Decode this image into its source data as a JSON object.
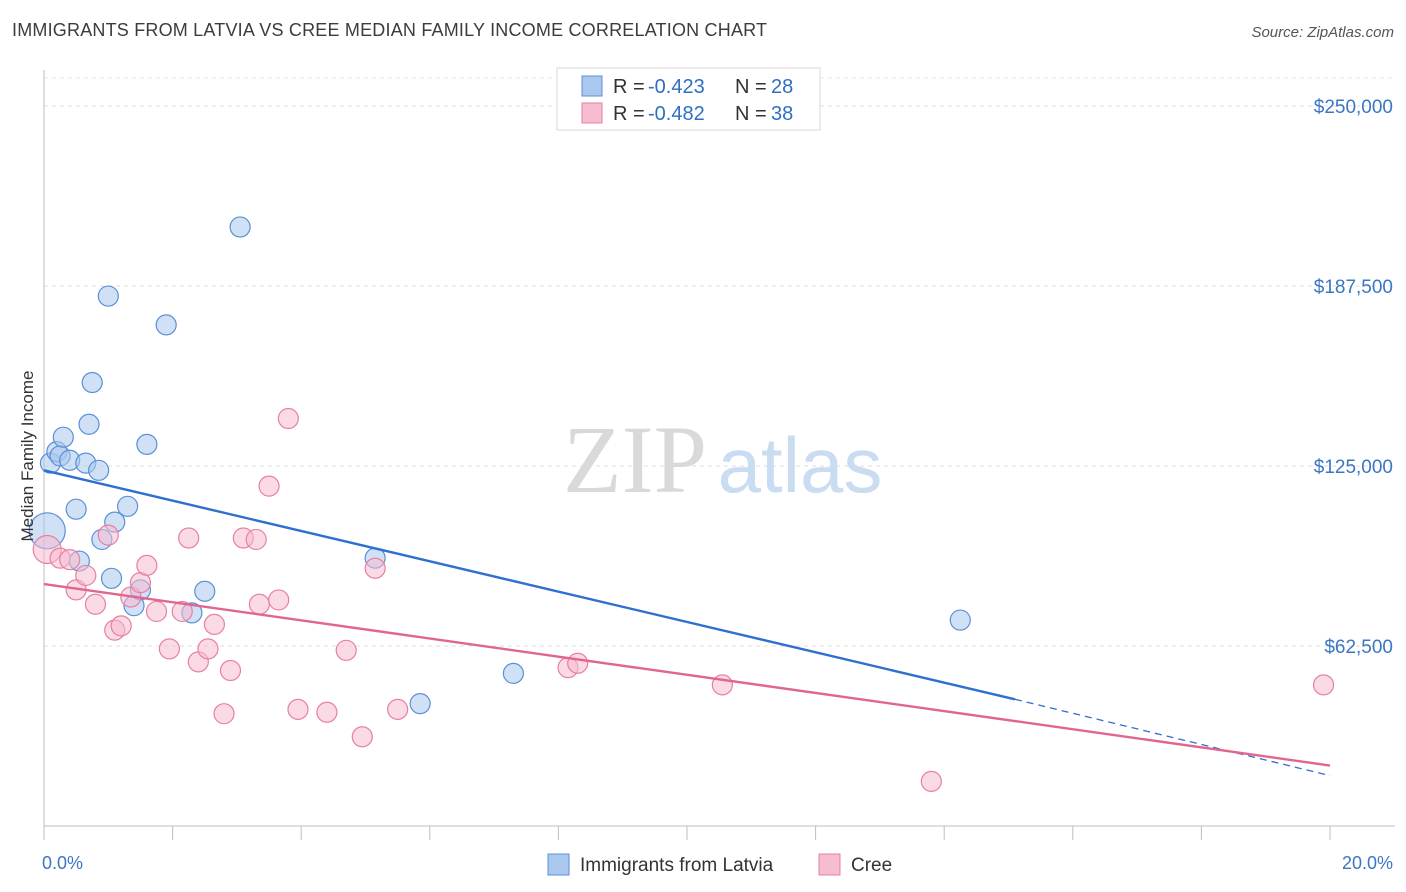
{
  "header": {
    "title": "IMMIGRANTS FROM LATVIA VS CREE MEDIAN FAMILY INCOME CORRELATION CHART",
    "source": "Source: ZipAtlas.com"
  },
  "watermark": {
    "zip": "ZIP",
    "atlas": "atlas"
  },
  "legend": {
    "r_label": "R =",
    "n_label": "N =",
    "rows": [
      {
        "r": "-0.423",
        "n": "28"
      },
      {
        "r": "-0.482",
        "n": "38"
      }
    ]
  },
  "chart_data": {
    "type": "scatter",
    "title": "IMMIGRANTS FROM LATVIA VS CREE MEDIAN FAMILY INCOME CORRELATION CHART",
    "xlabel": "",
    "ylabel": "Median Family Income",
    "xlim": [
      0,
      20
    ],
    "ylim": [
      0,
      262500
    ],
    "x_tick_labels": [
      "0.0%",
      "20.0%"
    ],
    "y_ticks": [
      62500,
      125000,
      187500,
      250000
    ],
    "y_tick_labels": [
      "$62,500",
      "$125,000",
      "$187,500",
      "$250,000"
    ],
    "series": [
      {
        "name": "Immigrants from Latvia",
        "color": "#aac8ee",
        "edge": "#5a8fd6",
        "line_color": "#2f6fce",
        "trend": {
          "x0": 0.0,
          "y0": 123500,
          "x1": 15.1,
          "y1": 44000,
          "dash_to_x": 20.0,
          "dash_to_y": 17500
        },
        "points": [
          [
            0.1,
            126000
          ],
          [
            0.2,
            130000
          ],
          [
            0.25,
            128500
          ],
          [
            0.3,
            135000
          ],
          [
            0.4,
            127000
          ],
          [
            0.5,
            110000
          ],
          [
            0.55,
            92000
          ],
          [
            0.65,
            126000
          ],
          [
            0.7,
            139500
          ],
          [
            0.75,
            154000
          ],
          [
            0.85,
            123500
          ],
          [
            0.9,
            99500
          ],
          [
            1.0,
            184000
          ],
          [
            1.05,
            86000
          ],
          [
            1.1,
            105500
          ],
          [
            1.3,
            111000
          ],
          [
            1.4,
            76500
          ],
          [
            1.5,
            82000
          ],
          [
            1.6,
            132500
          ],
          [
            1.9,
            174000
          ],
          [
            2.3,
            74000
          ],
          [
            2.5,
            81500
          ],
          [
            3.05,
            208000
          ],
          [
            5.15,
            93000
          ],
          [
            5.85,
            42500
          ],
          [
            7.3,
            53000
          ],
          [
            14.25,
            71500
          ],
          [
            0.05,
            102500
          ]
        ],
        "sizes": [
          10,
          10,
          10,
          10,
          10,
          10,
          10,
          10,
          10,
          10,
          10,
          10,
          10,
          10,
          10,
          10,
          10,
          10,
          10,
          10,
          10,
          10,
          10,
          10,
          10,
          10,
          10,
          18
        ]
      },
      {
        "name": "Cree",
        "color": "#f6bcd0",
        "edge": "#e87fa3",
        "line_color": "#e06690",
        "trend": {
          "x0": 0.0,
          "y0": 84000,
          "x1": 20.0,
          "y1": 21000
        },
        "points": [
          [
            0.05,
            96000
          ],
          [
            0.25,
            93000
          ],
          [
            0.4,
            92500
          ],
          [
            0.5,
            82000
          ],
          [
            0.65,
            87000
          ],
          [
            0.8,
            77000
          ],
          [
            1.0,
            101000
          ],
          [
            1.1,
            68000
          ],
          [
            1.2,
            69500
          ],
          [
            1.35,
            79500
          ],
          [
            1.5,
            84500
          ],
          [
            1.6,
            90500
          ],
          [
            1.75,
            74500
          ],
          [
            1.95,
            61500
          ],
          [
            2.15,
            74500
          ],
          [
            2.25,
            100000
          ],
          [
            2.4,
            57000
          ],
          [
            2.55,
            61500
          ],
          [
            2.65,
            70000
          ],
          [
            2.8,
            39000
          ],
          [
            2.9,
            54000
          ],
          [
            3.1,
            100000
          ],
          [
            3.3,
            99500
          ],
          [
            3.35,
            77000
          ],
          [
            3.5,
            118000
          ],
          [
            3.65,
            78500
          ],
          [
            3.8,
            141500
          ],
          [
            3.95,
            40500
          ],
          [
            4.4,
            39500
          ],
          [
            4.7,
            61000
          ],
          [
            4.95,
            31000
          ],
          [
            5.15,
            89500
          ],
          [
            5.5,
            40500
          ],
          [
            8.15,
            55000
          ],
          [
            8.3,
            56500
          ],
          [
            10.55,
            49000
          ],
          [
            13.8,
            15500
          ],
          [
            19.9,
            49000
          ]
        ],
        "sizes": [
          14,
          10,
          10,
          10,
          10,
          10,
          10,
          10,
          10,
          10,
          10,
          10,
          10,
          10,
          10,
          10,
          10,
          10,
          10,
          10,
          10,
          10,
          10,
          10,
          10,
          10,
          10,
          10,
          10,
          10,
          10,
          10,
          10,
          10,
          10,
          10,
          10,
          10
        ]
      }
    ]
  }
}
